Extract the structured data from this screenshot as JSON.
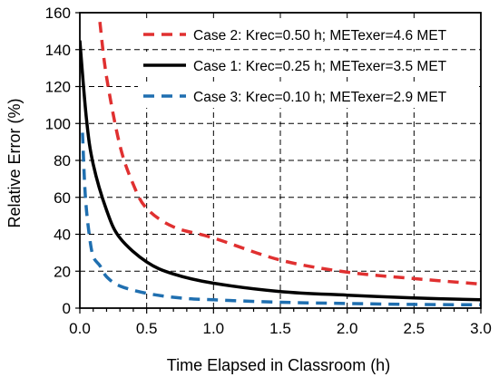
{
  "chart_data": {
    "type": "line",
    "title": "",
    "xlabel": "Time Elapsed in Classroom (h)",
    "ylabel": "Relative Error (%)",
    "xlim": [
      0,
      3.0
    ],
    "ylim": [
      0,
      160
    ],
    "x_ticks": [
      "0.0",
      "0.5",
      "1.0",
      "1.5",
      "2.0",
      "2.5",
      "3.0"
    ],
    "y_ticks": [
      "0",
      "20",
      "40",
      "60",
      "80",
      "100",
      "120",
      "140",
      "160"
    ],
    "grid": "dashed",
    "legend_position": "top-right",
    "series": [
      {
        "name": "Case 2: Krec=0.50 h; METexer=4.6 MET",
        "color": "#e03030",
        "style": "dashed",
        "x": [
          0.15,
          0.2,
          0.3,
          0.4,
          0.5,
          0.7,
          1.0,
          1.5,
          2.0,
          2.5,
          3.0
        ],
        "y": [
          155,
          125,
          88,
          67,
          54,
          44,
          38,
          26,
          19.5,
          16,
          13
        ]
      },
      {
        "name": "Case 1: Krec=0.25 h; METexer=3.5 MET",
        "color": "#000000",
        "style": "solid",
        "x": [
          0.0,
          0.05,
          0.1,
          0.2,
          0.3,
          0.5,
          0.7,
          1.0,
          1.5,
          2.0,
          2.5,
          3.0
        ],
        "y": [
          145,
          102,
          78,
          53,
          38,
          25,
          18.5,
          13.5,
          9,
          7,
          5.5,
          4.5
        ]
      },
      {
        "name": "Case 3: Krec=0.10 h; METexer=2.9 MET",
        "color": "#1f6fb0",
        "style": "dashed",
        "x": [
          0.02,
          0.04,
          0.07,
          0.1,
          0.15,
          0.2,
          0.3,
          0.5,
          0.75,
          1.0,
          1.5,
          2.0,
          2.5,
          3.0
        ],
        "y": [
          95,
          62,
          40,
          28,
          23,
          17,
          12,
          8,
          5.5,
          4.5,
          3.2,
          2.5,
          2.0,
          1.8
        ]
      }
    ]
  }
}
